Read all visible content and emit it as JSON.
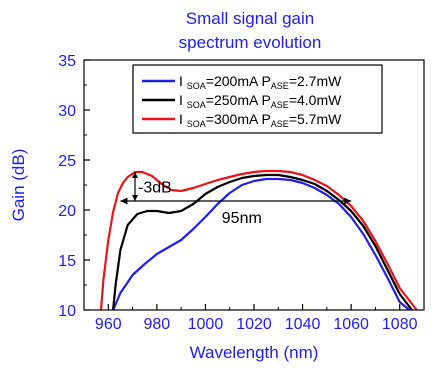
{
  "chart_data": {
    "type": "line",
    "title": "Small signal gain\nspectrum evolution",
    "xlabel": "Wavelength (nm)",
    "ylabel": "Gain (dB)",
    "xlim": [
      950,
      1090
    ],
    "ylim": [
      10,
      35
    ],
    "xticks": [
      960,
      980,
      1000,
      1020,
      1040,
      1060,
      1080
    ],
    "yticks": [
      10,
      15,
      20,
      25,
      30,
      35
    ],
    "grid": false,
    "legend_position": "top-right",
    "series": [
      {
        "name": "I SOA=200mA P ASE=2.7mW",
        "label_parts": {
          "a": "I",
          "a_sub": "SOA",
          "b": "=200mA P",
          "b_sub": "ASE",
          "c": "=2.7mW"
        },
        "color": "#1f1fe8",
        "x": [
          962,
          965,
          970,
          975,
          980,
          985,
          990,
          995,
          1000,
          1005,
          1010,
          1015,
          1020,
          1025,
          1030,
          1035,
          1040,
          1045,
          1050,
          1055,
          1060,
          1065,
          1070,
          1075,
          1080,
          1084
        ],
        "y": [
          10.0,
          11.7,
          13.5,
          14.6,
          15.6,
          16.3,
          17.0,
          18.1,
          19.3,
          20.6,
          21.7,
          22.5,
          22.9,
          23.1,
          23.1,
          23.0,
          22.7,
          22.2,
          21.5,
          20.6,
          19.3,
          17.6,
          15.5,
          13.2,
          10.8,
          10.0
        ]
      },
      {
        "name": "I SOA=250mA P ASE=4.0mW",
        "label_parts": {
          "a": "I",
          "a_sub": "SOA",
          "b": "=250mA P",
          "b_sub": "ASE",
          "c": "=4.0mW"
        },
        "color": "#000000",
        "x": [
          962,
          963,
          965,
          968,
          972,
          976,
          980,
          985,
          990,
          995,
          1000,
          1005,
          1010,
          1015,
          1020,
          1025,
          1030,
          1035,
          1040,
          1045,
          1050,
          1055,
          1060,
          1065,
          1070,
          1075,
          1080,
          1085
        ],
        "y": [
          10.0,
          12.5,
          16.0,
          18.5,
          19.6,
          19.9,
          19.9,
          19.7,
          19.9,
          20.6,
          21.6,
          22.3,
          22.8,
          23.2,
          23.4,
          23.5,
          23.5,
          23.3,
          23.0,
          22.6,
          21.9,
          21.0,
          19.9,
          18.4,
          16.4,
          14.0,
          11.6,
          10.0
        ]
      },
      {
        "name": "I SOA=300mA P ASE=5.7mW",
        "label_parts": {
          "a": "I",
          "a_sub": "SOA",
          "b": "=300mA P",
          "b_sub": "ASE",
          "c": "=5.7mW"
        },
        "color": "#e8141c",
        "x": [
          957,
          958,
          960,
          962,
          964,
          966,
          968,
          971,
          974,
          978,
          982,
          986,
          990,
          995,
          1000,
          1005,
          1010,
          1015,
          1020,
          1025,
          1030,
          1035,
          1040,
          1045,
          1050,
          1055,
          1060,
          1065,
          1070,
          1075,
          1080,
          1087
        ],
        "y": [
          10.0,
          13.0,
          17.0,
          19.8,
          21.7,
          22.7,
          23.3,
          23.8,
          23.8,
          23.4,
          22.6,
          22.0,
          21.9,
          22.2,
          22.6,
          23.0,
          23.3,
          23.6,
          23.8,
          23.9,
          23.9,
          23.8,
          23.5,
          23.0,
          22.4,
          21.5,
          20.4,
          18.9,
          16.9,
          14.6,
          12.2,
          10.0
        ]
      }
    ],
    "annotations": [
      {
        "text": "-3dB",
        "x": 971,
        "y1": 20.9,
        "y2": 23.8
      },
      {
        "text": "95nm",
        "x1": 965,
        "x2": 1060,
        "y": 20.9
      }
    ]
  }
}
